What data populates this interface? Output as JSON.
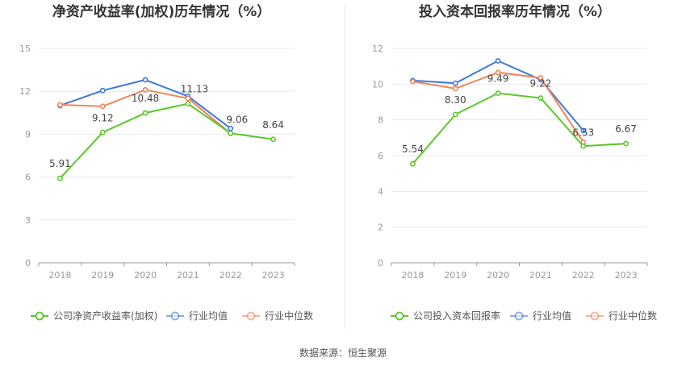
{
  "source": "数据来源：恒生聚源",
  "colors": {
    "company": "#5cc72a",
    "average": "#3d78e0",
    "median": "#f0845a",
    "grid": "#e6e8ee",
    "divider": "#eeeeee"
  },
  "chart_data": [
    {
      "type": "line",
      "title": "净资产收益率(加权)历年情况（%）",
      "xlabel": "",
      "ylabel": "",
      "ylim": [
        0,
        15
      ],
      "yticks": [
        "0",
        "3",
        "6",
        "9",
        "12",
        "15"
      ],
      "categories": [
        "2018",
        "2019",
        "2020",
        "2021",
        "2022",
        "2023"
      ],
      "grid": true,
      "legend": "bottom",
      "series": [
        {
          "name": "公司净资产收益率(加权)",
          "key": "company",
          "values": [
            5.91,
            9.12,
            10.48,
            11.13,
            9.06,
            8.64
          ],
          "labels": [
            "5.91",
            "9.12",
            "10.48",
            "11.13",
            "9.06",
            "8.64"
          ]
        },
        {
          "name": "行业均值",
          "key": "average",
          "values": [
            11.0,
            12.05,
            12.8,
            11.65,
            9.4,
            null
          ]
        },
        {
          "name": "行业中位数",
          "key": "median",
          "values": [
            11.05,
            10.95,
            12.1,
            11.5,
            9.05,
            null
          ]
        }
      ]
    },
    {
      "type": "line",
      "title": "投入资本回报率历年情况（%）",
      "xlabel": "",
      "ylabel": "",
      "ylim": [
        0,
        12
      ],
      "yticks": [
        "0",
        "2",
        "4",
        "6",
        "8",
        "10",
        "12"
      ],
      "categories": [
        "2018",
        "2019",
        "2020",
        "2021",
        "2022",
        "2023"
      ],
      "grid": true,
      "legend": "bottom",
      "series": [
        {
          "name": "公司投入资本回报率",
          "key": "company",
          "values": [
            5.54,
            8.3,
            9.49,
            9.22,
            6.53,
            6.67
          ],
          "labels": [
            "5.54",
            "8.30",
            "9.49",
            "9.22",
            "6.53",
            "6.67"
          ]
        },
        {
          "name": "行业均值",
          "key": "average",
          "values": [
            10.2,
            10.05,
            11.3,
            10.25,
            7.4,
            null
          ]
        },
        {
          "name": "行业中位数",
          "key": "median",
          "values": [
            10.15,
            9.75,
            10.65,
            10.35,
            6.75,
            null
          ]
        }
      ]
    }
  ]
}
